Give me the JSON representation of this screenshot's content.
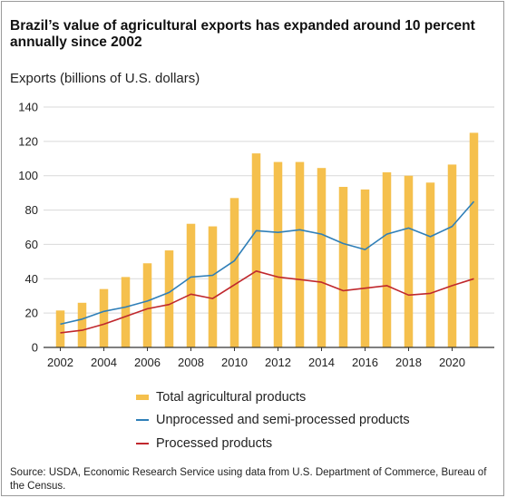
{
  "title": "Brazil’s value of agricultural exports has expanded around 10 percent annually since 2002",
  "subtitle": "Exports (billions of U.S. dollars)",
  "source": "Source: USDA, Economic Research Service using data from U.S. Department of Commerce, Bureau of the Census.",
  "colors": {
    "bars": "#f5c04d",
    "unprocessed": "#2f7fb8",
    "processed": "#c0282d",
    "gridline": "#d9d9d9",
    "axis": "#333333"
  },
  "chart_data": {
    "type": "bar",
    "title": "Brazil’s value of agricultural exports has expanded around 10 percent annually since 2002",
    "ylabel": "Exports (billions of U.S. dollars)",
    "xlabel": "",
    "ylim": [
      0,
      140
    ],
    "yticks": [
      0,
      20,
      40,
      60,
      80,
      100,
      120,
      140
    ],
    "xtick_labels": [
      "2002",
      "2004",
      "2006",
      "2008",
      "2010",
      "2012",
      "2014",
      "2016",
      "2018",
      "2020"
    ],
    "grid": true,
    "legend_position": "bottom",
    "categories": [
      "2002",
      "2003",
      "2004",
      "2005",
      "2006",
      "2007",
      "2008",
      "2009",
      "2010",
      "2011",
      "2012",
      "2013",
      "2014",
      "2015",
      "2016",
      "2017",
      "2018",
      "2019",
      "2020",
      "2021"
    ],
    "series": [
      {
        "name": "Total agricultural  products",
        "type": "bar",
        "values": [
          21.5,
          26,
          34,
          41,
          49,
          56.5,
          72,
          70.5,
          87,
          113,
          108,
          108,
          104.5,
          93.5,
          92,
          102,
          100,
          96,
          106.5,
          125
        ]
      },
      {
        "name": "Unprocessed and semi-processed products",
        "type": "line",
        "values": [
          13.5,
          16.5,
          21,
          23.5,
          27,
          32,
          41,
          42,
          50.5,
          68,
          67,
          68.5,
          66,
          60.5,
          57,
          66,
          69.5,
          64.5,
          70.5,
          85
        ]
      },
      {
        "name": "Processed products",
        "type": "line",
        "values": [
          8.5,
          10,
          13.5,
          18,
          22.5,
          25,
          31,
          28.5,
          36.5,
          44.5,
          41,
          39.5,
          38,
          33,
          34.5,
          36,
          30.5,
          31.5,
          36,
          40
        ]
      }
    ]
  }
}
